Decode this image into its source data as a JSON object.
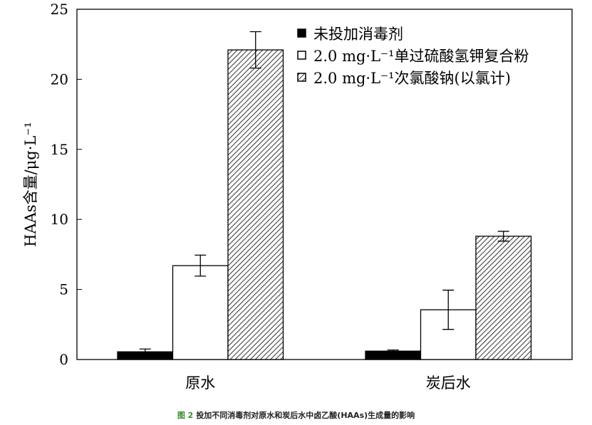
{
  "chart_data": {
    "type": "bar",
    "categories": [
      "原水",
      "炭后水"
    ],
    "ylabel": "HAAs含量/μg·L⁻¹",
    "ylim": [
      0,
      25
    ],
    "yticks": [
      0,
      5,
      10,
      15,
      20,
      25
    ],
    "grid": false,
    "legend_position": "top-right",
    "series": [
      {
        "name": "未投加消毒剂",
        "fill": "black",
        "values": [
          0.55,
          0.6
        ],
        "errors": [
          0.2,
          0.08
        ]
      },
      {
        "name": "2.0 mg·L⁻¹单过硫酸氢钾复合粉",
        "fill": "white",
        "values": [
          6.7,
          3.55
        ],
        "errors": [
          0.75,
          1.4
        ]
      },
      {
        "name": "2.0 mg·L⁻¹次氯酸钠(以氯计)",
        "fill": "hatched",
        "values": [
          22.1,
          8.8
        ],
        "errors": [
          1.3,
          0.35
        ]
      }
    ]
  },
  "caption": {
    "figure": "图 2",
    "text": "投加不同消毒剂对原水和炭后水中卤乙酸(HAAs)生成量的影响"
  }
}
